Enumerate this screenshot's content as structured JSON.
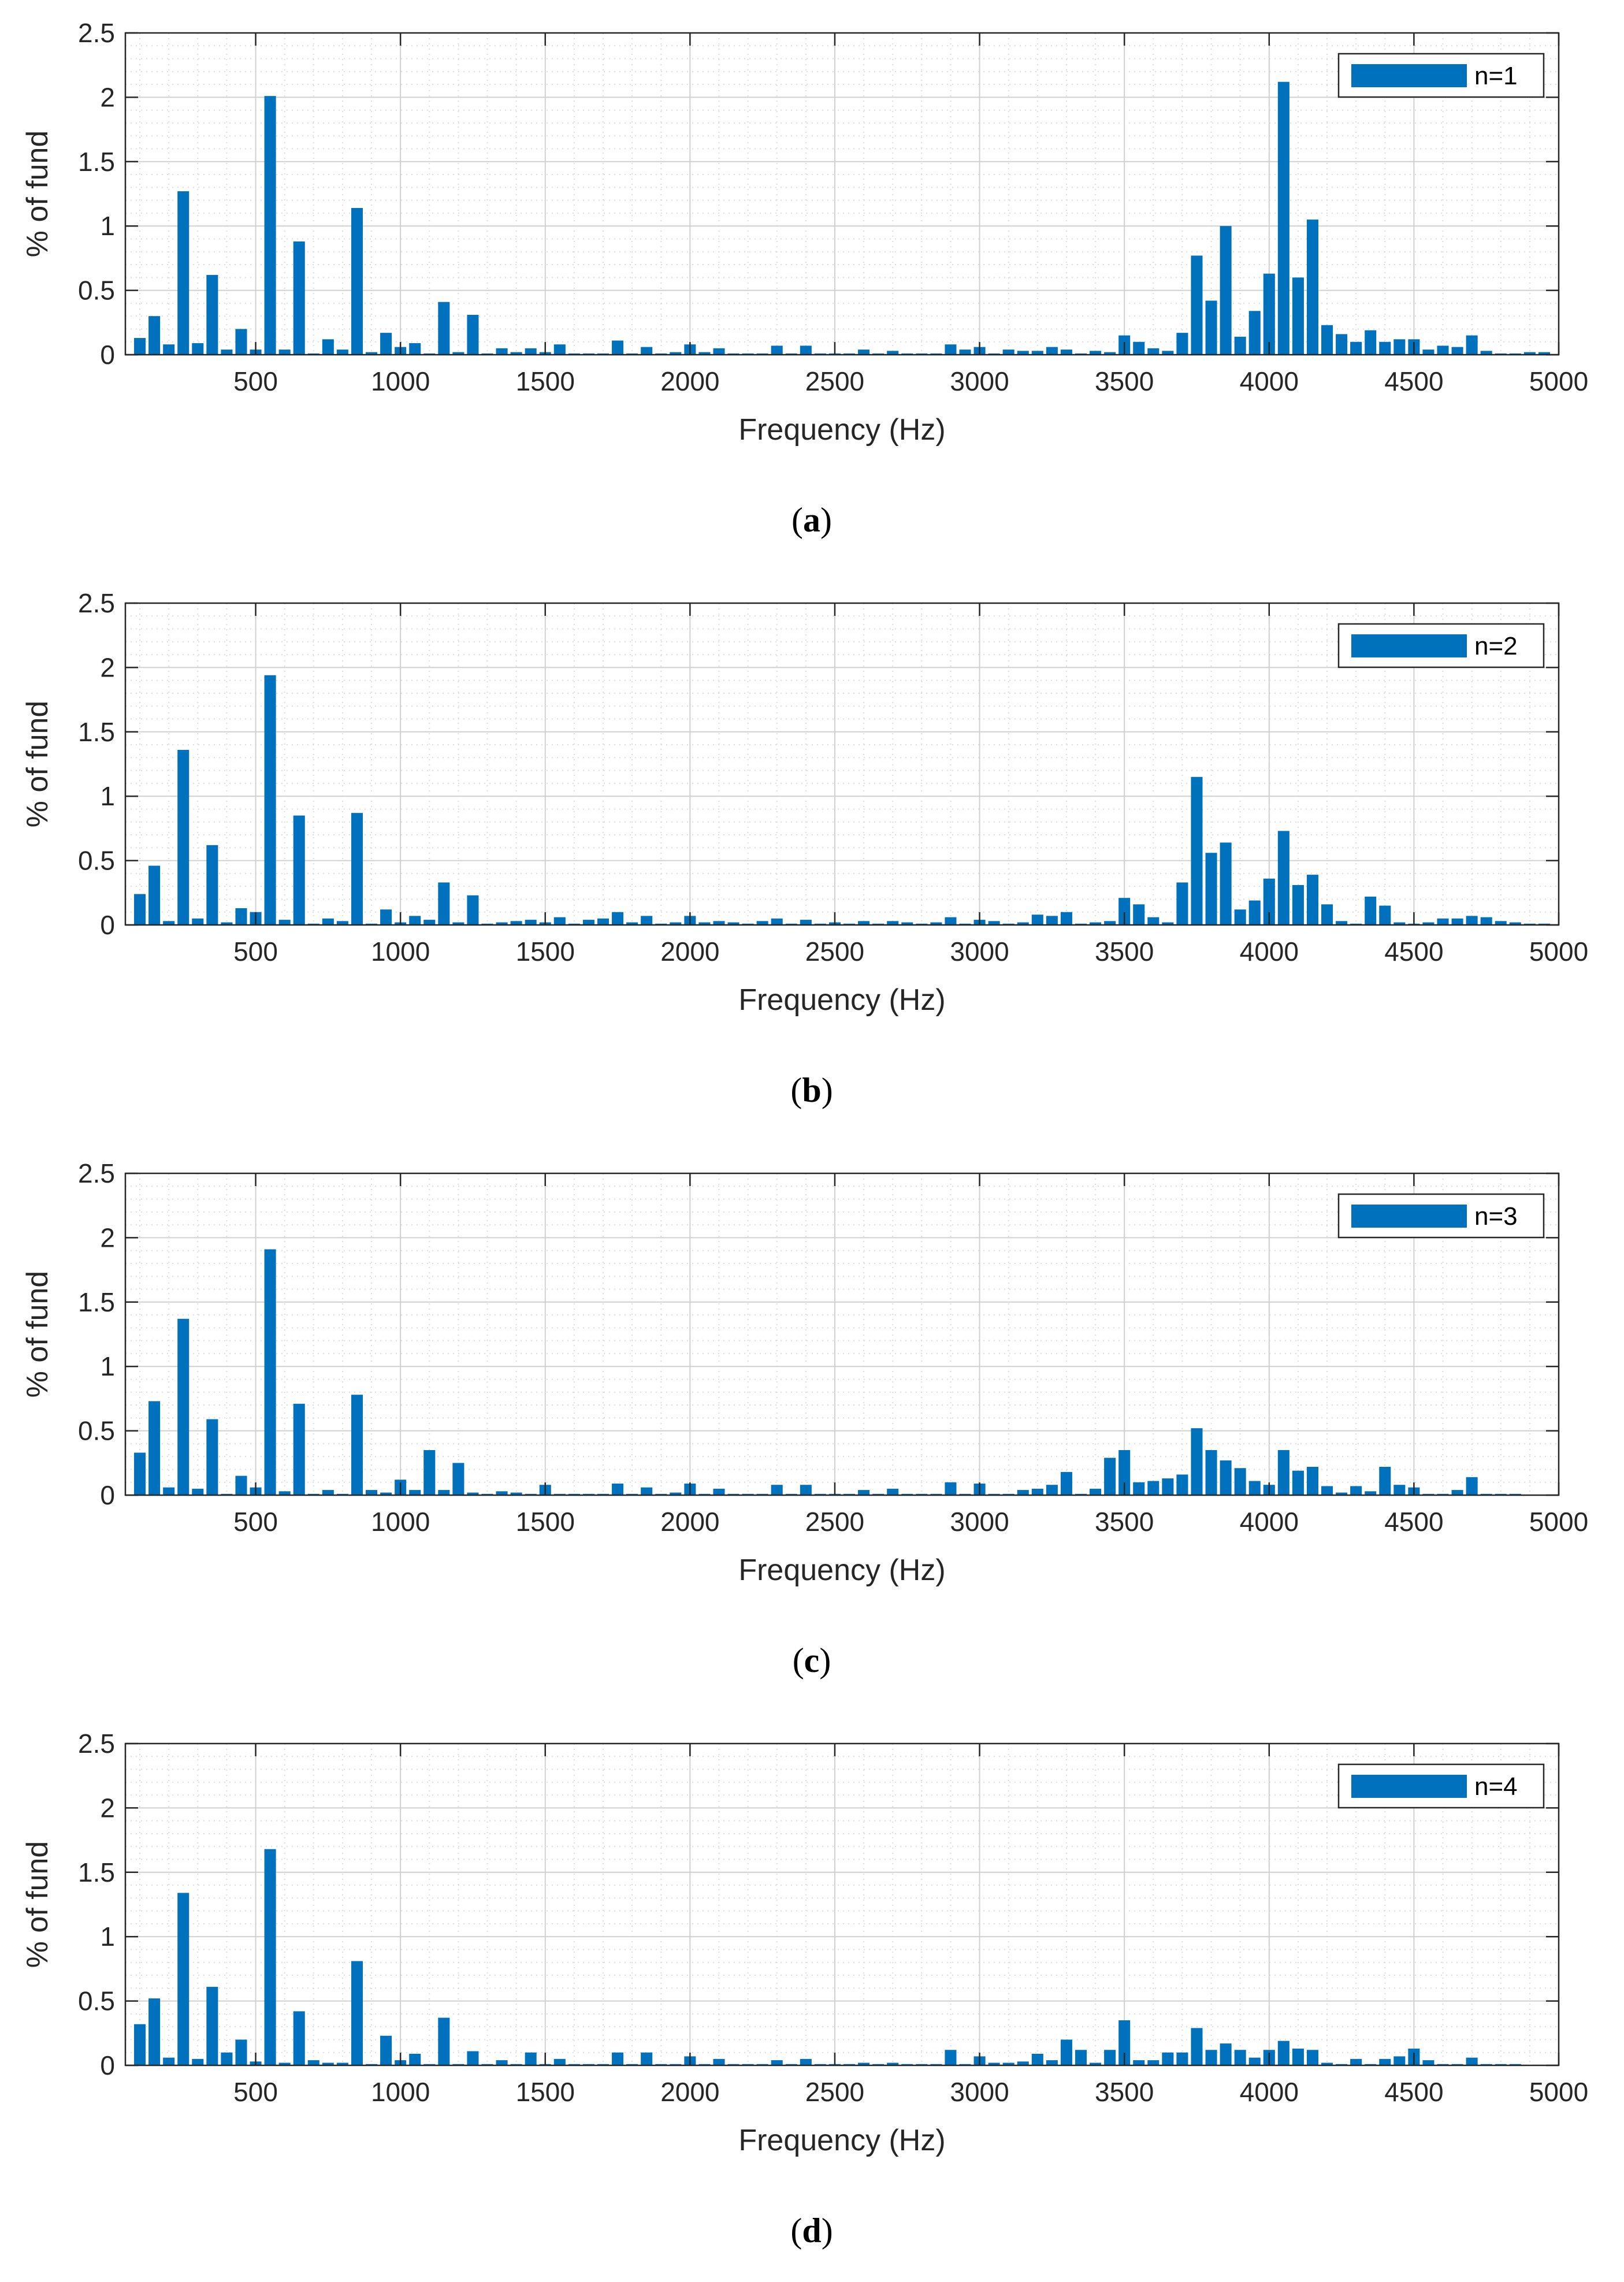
{
  "chart_data": [
    {
      "type": "bar",
      "caption": "a",
      "legend": "n=1",
      "xlabel": "Frequency (Hz)",
      "ylabel": "% of fund",
      "xlim": [
        50,
        5000
      ],
      "ylim": [
        0,
        2.5
      ],
      "xticks": [
        "500",
        "1000",
        "1500",
        "2000",
        "2500",
        "3000",
        "3500",
        "4000",
        "4500",
        "5000"
      ],
      "yticks": [
        "0",
        "0.5",
        "1",
        "1.5",
        "2",
        "2.5"
      ],
      "grid": true,
      "legend_position": "top-right",
      "color": "#0072BD",
      "x": [
        100,
        150,
        200,
        250,
        300,
        350,
        400,
        450,
        500,
        550,
        600,
        650,
        700,
        750,
        800,
        850,
        900,
        950,
        1000,
        1050,
        1100,
        1150,
        1200,
        1250,
        1300,
        1350,
        1400,
        1450,
        1500,
        1550,
        1600,
        1650,
        1700,
        1750,
        1800,
        1850,
        1900,
        1950,
        2000,
        2050,
        2100,
        2150,
        2200,
        2250,
        2300,
        2350,
        2400,
        2450,
        2500,
        2550,
        2600,
        2650,
        2700,
        2750,
        2800,
        2850,
        2900,
        2950,
        3000,
        3050,
        3100,
        3150,
        3200,
        3250,
        3300,
        3350,
        3400,
        3450,
        3500,
        3550,
        3600,
        3650,
        3700,
        3750,
        3800,
        3850,
        3900,
        3950,
        4000,
        4050,
        4100,
        4150,
        4200,
        4250,
        4300,
        4350,
        4400,
        4450,
        4500,
        4550,
        4600,
        4650,
        4700,
        4750,
        4800,
        4850,
        4900,
        4950,
        5000
      ],
      "values": [
        0.13,
        0.3,
        0.08,
        1.27,
        0.09,
        0.62,
        0.04,
        0.2,
        0.04,
        2.01,
        0.04,
        0.88,
        0.01,
        0.12,
        0.04,
        1.14,
        0.02,
        0.17,
        0.06,
        0.09,
        0.01,
        0.41,
        0.02,
        0.31,
        0.01,
        0.05,
        0.02,
        0.05,
        0.02,
        0.08,
        0.01,
        0.01,
        0.01,
        0.11,
        0.01,
        0.06,
        0.01,
        0.02,
        0.08,
        0.02,
        0.05,
        0.01,
        0.01,
        0.01,
        0.07,
        0.01,
        0.07,
        0.01,
        0.01,
        0.01,
        0.04,
        0.01,
        0.03,
        0.01,
        0.01,
        0.01,
        0.08,
        0.04,
        0.06,
        0.01,
        0.04,
        0.03,
        0.03,
        0.06,
        0.04,
        0.01,
        0.03,
        0.02,
        0.15,
        0.1,
        0.05,
        0.03,
        0.17,
        0.77,
        0.42,
        1.0,
        0.14,
        0.34,
        0.63,
        2.12,
        0.6,
        1.05,
        0.23,
        0.16,
        0.1,
        0.19,
        0.1,
        0.12,
        0.12,
        0.04,
        0.07,
        0.06,
        0.15,
        0.03,
        0.01,
        0.01,
        0.02,
        0.02,
        0.0
      ]
    },
    {
      "type": "bar",
      "caption": "b",
      "legend": "n=2",
      "xlabel": "Frequency (Hz)",
      "ylabel": "% of fund",
      "xlim": [
        50,
        5000
      ],
      "ylim": [
        0,
        2.5
      ],
      "xticks": [
        "500",
        "1000",
        "1500",
        "2000",
        "2500",
        "3000",
        "3500",
        "4000",
        "4500",
        "5000"
      ],
      "yticks": [
        "0",
        "0.5",
        "1",
        "1.5",
        "2",
        "2.5"
      ],
      "grid": true,
      "legend_position": "top-right",
      "color": "#0072BD",
      "x": [
        100,
        150,
        200,
        250,
        300,
        350,
        400,
        450,
        500,
        550,
        600,
        650,
        700,
        750,
        800,
        850,
        900,
        950,
        1000,
        1050,
        1100,
        1150,
        1200,
        1250,
        1300,
        1350,
        1400,
        1450,
        1500,
        1550,
        1600,
        1650,
        1700,
        1750,
        1800,
        1850,
        1900,
        1950,
        2000,
        2050,
        2100,
        2150,
        2200,
        2250,
        2300,
        2350,
        2400,
        2450,
        2500,
        2550,
        2600,
        2650,
        2700,
        2750,
        2800,
        2850,
        2900,
        2950,
        3000,
        3050,
        3100,
        3150,
        3200,
        3250,
        3300,
        3350,
        3400,
        3450,
        3500,
        3550,
        3600,
        3650,
        3700,
        3750,
        3800,
        3850,
        3900,
        3950,
        4000,
        4050,
        4100,
        4150,
        4200,
        4250,
        4300,
        4350,
        4400,
        4450,
        4500,
        4550,
        4600,
        4650,
        4700,
        4750,
        4800,
        4850,
        4900,
        4950,
        5000
      ],
      "values": [
        0.24,
        0.46,
        0.03,
        1.36,
        0.05,
        0.62,
        0.02,
        0.13,
        0.1,
        1.94,
        0.04,
        0.85,
        0.01,
        0.05,
        0.03,
        0.87,
        0.01,
        0.12,
        0.02,
        0.07,
        0.04,
        0.33,
        0.02,
        0.23,
        0.01,
        0.02,
        0.03,
        0.04,
        0.02,
        0.06,
        0.01,
        0.04,
        0.05,
        0.1,
        0.02,
        0.07,
        0.01,
        0.02,
        0.07,
        0.02,
        0.03,
        0.02,
        0.01,
        0.03,
        0.05,
        0.01,
        0.04,
        0.01,
        0.02,
        0.01,
        0.03,
        0.01,
        0.03,
        0.02,
        0.01,
        0.02,
        0.06,
        0.01,
        0.04,
        0.03,
        0.01,
        0.02,
        0.08,
        0.07,
        0.1,
        0.01,
        0.02,
        0.03,
        0.21,
        0.16,
        0.06,
        0.02,
        0.33,
        1.15,
        0.56,
        0.64,
        0.12,
        0.19,
        0.36,
        0.73,
        0.31,
        0.39,
        0.16,
        0.03,
        0.01,
        0.22,
        0.15,
        0.02,
        0.01,
        0.02,
        0.05,
        0.05,
        0.07,
        0.06,
        0.03,
        0.02,
        0.01,
        0.01,
        0.0
      ]
    },
    {
      "type": "bar",
      "caption": "c",
      "legend": "n=3",
      "xlabel": "Frequency (Hz)",
      "ylabel": "% of fund",
      "xlim": [
        50,
        5000
      ],
      "ylim": [
        0,
        2.5
      ],
      "xticks": [
        "500",
        "1000",
        "1500",
        "2000",
        "2500",
        "3000",
        "3500",
        "4000",
        "4500",
        "5000"
      ],
      "yticks": [
        "0",
        "0.5",
        "1",
        "1.5",
        "2",
        "2.5"
      ],
      "grid": true,
      "legend_position": "top-right",
      "color": "#0072BD",
      "x": [
        100,
        150,
        200,
        250,
        300,
        350,
        400,
        450,
        500,
        550,
        600,
        650,
        700,
        750,
        800,
        850,
        900,
        950,
        1000,
        1050,
        1100,
        1150,
        1200,
        1250,
        1300,
        1350,
        1400,
        1450,
        1500,
        1550,
        1600,
        1650,
        1700,
        1750,
        1800,
        1850,
        1900,
        1950,
        2000,
        2050,
        2100,
        2150,
        2200,
        2250,
        2300,
        2350,
        2400,
        2450,
        2500,
        2550,
        2600,
        2650,
        2700,
        2750,
        2800,
        2850,
        2900,
        2950,
        3000,
        3050,
        3100,
        3150,
        3200,
        3250,
        3300,
        3350,
        3400,
        3450,
        3500,
        3550,
        3600,
        3650,
        3700,
        3750,
        3800,
        3850,
        3900,
        3950,
        4000,
        4050,
        4100,
        4150,
        4200,
        4250,
        4300,
        4350,
        4400,
        4450,
        4500,
        4550,
        4600,
        4650,
        4700,
        4750,
        4800,
        4850,
        4900,
        4950,
        5000
      ],
      "values": [
        0.33,
        0.73,
        0.06,
        1.37,
        0.05,
        0.59,
        0.01,
        0.15,
        0.06,
        1.91,
        0.03,
        0.71,
        0.01,
        0.04,
        0.01,
        0.78,
        0.04,
        0.02,
        0.12,
        0.04,
        0.35,
        0.04,
        0.25,
        0.02,
        0.01,
        0.03,
        0.02,
        0.01,
        0.08,
        0.01,
        0.01,
        0.01,
        0.01,
        0.09,
        0.01,
        0.06,
        0.01,
        0.02,
        0.09,
        0.01,
        0.05,
        0.01,
        0.01,
        0.01,
        0.08,
        0.01,
        0.08,
        0.01,
        0.01,
        0.01,
        0.04,
        0.01,
        0.05,
        0.01,
        0.01,
        0.01,
        0.1,
        0.01,
        0.09,
        0.01,
        0.01,
        0.04,
        0.05,
        0.08,
        0.18,
        0.01,
        0.05,
        0.29,
        0.35,
        0.1,
        0.11,
        0.13,
        0.16,
        0.52,
        0.35,
        0.27,
        0.21,
        0.11,
        0.08,
        0.35,
        0.19,
        0.22,
        0.07,
        0.02,
        0.07,
        0.03,
        0.22,
        0.08,
        0.06,
        0.01,
        0.01,
        0.04,
        0.14,
        0.01,
        0.01,
        0.01,
        0.0,
        0.0,
        0.0
      ]
    },
    {
      "type": "bar",
      "caption": "d",
      "legend": "n=4",
      "xlabel": "Frequency (Hz)",
      "ylabel": "% of fund",
      "xlim": [
        50,
        5000
      ],
      "ylim": [
        0,
        2.5
      ],
      "xticks": [
        "500",
        "1000",
        "1500",
        "2000",
        "2500",
        "3000",
        "3500",
        "4000",
        "4500",
        "5000"
      ],
      "yticks": [
        "0",
        "0.5",
        "1",
        "1.5",
        "2",
        "2.5"
      ],
      "grid": true,
      "legend_position": "top-right",
      "color": "#0072BD",
      "x": [
        100,
        150,
        200,
        250,
        300,
        350,
        400,
        450,
        500,
        550,
        600,
        650,
        700,
        750,
        800,
        850,
        900,
        950,
        1000,
        1050,
        1100,
        1150,
        1200,
        1250,
        1300,
        1350,
        1400,
        1450,
        1500,
        1550,
        1600,
        1650,
        1700,
        1750,
        1800,
        1850,
        1900,
        1950,
        2000,
        2050,
        2100,
        2150,
        2200,
        2250,
        2300,
        2350,
        2400,
        2450,
        2500,
        2550,
        2600,
        2650,
        2700,
        2750,
        2800,
        2850,
        2900,
        2950,
        3000,
        3050,
        3100,
        3150,
        3200,
        3250,
        3300,
        3350,
        3400,
        3450,
        3500,
        3550,
        3600,
        3650,
        3700,
        3750,
        3800,
        3850,
        3900,
        3950,
        4000,
        4050,
        4100,
        4150,
        4200,
        4250,
        4300,
        4350,
        4400,
        4450,
        4500,
        4550,
        4600,
        4650,
        4700,
        4750,
        4800,
        4850,
        4900,
        4950,
        5000
      ],
      "values": [
        0.32,
        0.52,
        0.06,
        1.34,
        0.05,
        0.61,
        0.1,
        0.2,
        0.03,
        1.68,
        0.02,
        0.42,
        0.04,
        0.02,
        0.02,
        0.81,
        0.01,
        0.23,
        0.04,
        0.09,
        0.01,
        0.37,
        0.01,
        0.11,
        0.01,
        0.04,
        0.01,
        0.1,
        0.01,
        0.05,
        0.01,
        0.01,
        0.01,
        0.1,
        0.01,
        0.1,
        0.01,
        0.01,
        0.07,
        0.01,
        0.05,
        0.01,
        0.01,
        0.01,
        0.04,
        0.01,
        0.05,
        0.01,
        0.01,
        0.01,
        0.02,
        0.01,
        0.02,
        0.01,
        0.01,
        0.01,
        0.12,
        0.01,
        0.07,
        0.02,
        0.02,
        0.03,
        0.09,
        0.04,
        0.2,
        0.12,
        0.02,
        0.12,
        0.35,
        0.04,
        0.04,
        0.1,
        0.1,
        0.29,
        0.12,
        0.17,
        0.12,
        0.06,
        0.12,
        0.19,
        0.13,
        0.12,
        0.02,
        0.01,
        0.05,
        0.01,
        0.05,
        0.07,
        0.13,
        0.04,
        0.01,
        0.01,
        0.06,
        0.01,
        0.01,
        0.01,
        0.0,
        0.0,
        0.0
      ]
    }
  ]
}
